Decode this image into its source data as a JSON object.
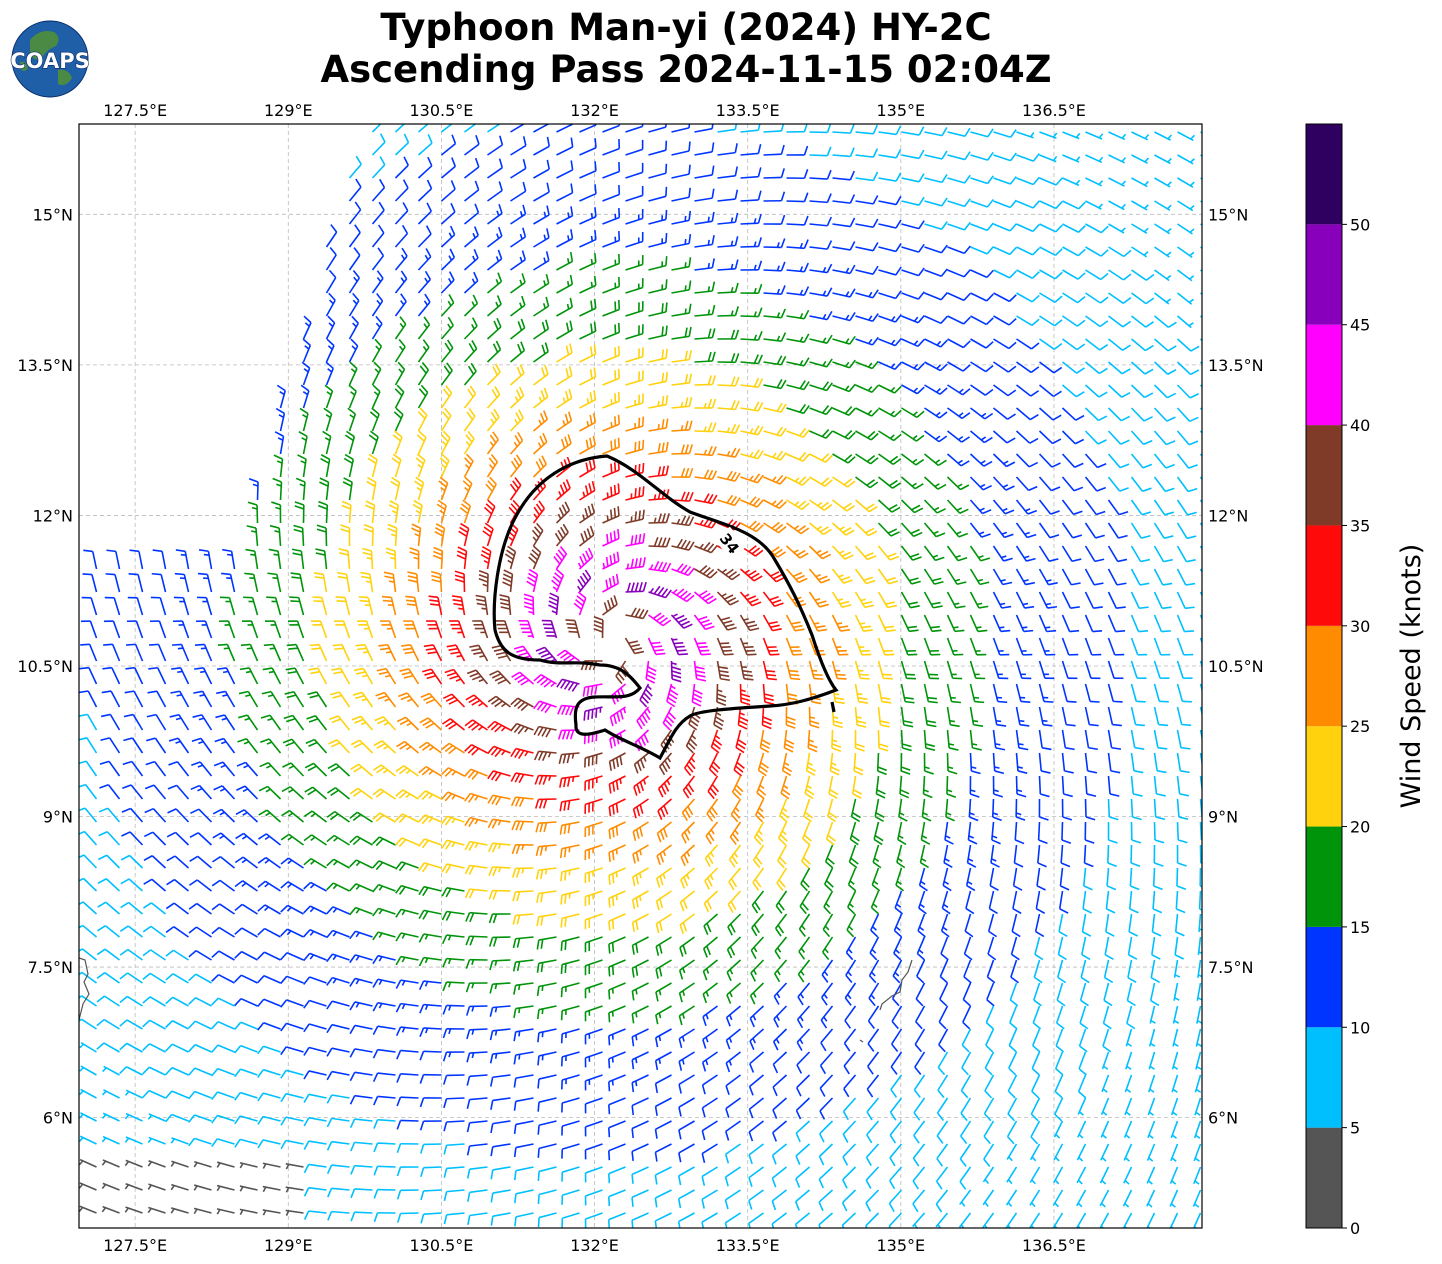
{
  "logo": {
    "text": "COAPS",
    "ocean_color": "#1f5fa8",
    "land_color": "#4f8f3a"
  },
  "title": {
    "line1": "Typhoon Man-yi (2024) HY-2C",
    "line2": "Ascending Pass 2024-11-15 02:04Z"
  },
  "map": {
    "lon_range": [
      126.95,
      137.95
    ],
    "lat_range": [
      4.9,
      15.9
    ],
    "lon_ticks": [
      "127.5°E",
      "129°E",
      "130.5°E",
      "132°E",
      "133.5°E",
      "135°E",
      "136.5°E"
    ],
    "lon_tick_values": [
      127.5,
      129,
      130.5,
      132,
      133.5,
      135,
      136.5
    ],
    "lat_ticks": [
      "15°N",
      "13.5°N",
      "12°N",
      "10.5°N",
      "9°N",
      "7.5°N",
      "6°N"
    ],
    "lat_tick_values": [
      15,
      13.5,
      12,
      10.5,
      9,
      7.5,
      6
    ],
    "grid": "dashed",
    "contour_label": "34",
    "storm_center": [
      132.15,
      10.75
    ],
    "coastline_color": "#555555"
  },
  "colorbar": {
    "label": "Wind Speed (knots)",
    "bins": [
      {
        "min": 0,
        "max": 5,
        "color": "#555555"
      },
      {
        "min": 5,
        "max": 10,
        "color": "#00bfff"
      },
      {
        "min": 10,
        "max": 15,
        "color": "#0035ff"
      },
      {
        "min": 15,
        "max": 20,
        "color": "#00940a"
      },
      {
        "min": 20,
        "max": 25,
        "color": "#ffd20d"
      },
      {
        "min": 25,
        "max": 30,
        "color": "#ff8c00"
      },
      {
        "min": 30,
        "max": 35,
        "color": "#ff0a0a"
      },
      {
        "min": 35,
        "max": 40,
        "color": "#7f3a28"
      },
      {
        "min": 40,
        "max": 45,
        "color": "#ff00ff"
      },
      {
        "min": 45,
        "max": 50,
        "color": "#8800bb"
      },
      {
        "min": 50,
        "max": 55,
        "color": "#2f005f"
      }
    ],
    "tick_labels": [
      "0",
      "5",
      "10",
      "15",
      "20",
      "25",
      "30",
      "35",
      "40",
      "45",
      "50"
    ]
  }
}
